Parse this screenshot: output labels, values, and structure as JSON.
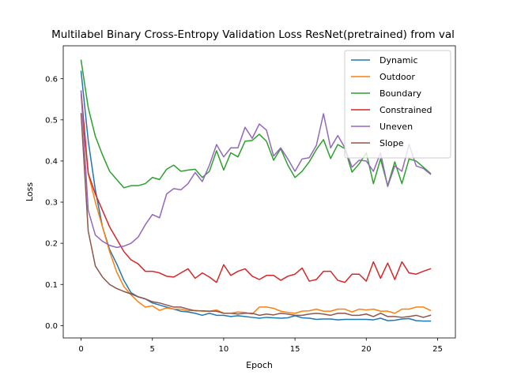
{
  "chart_data": {
    "type": "line",
    "title": "Multilabel Binary Cross-Entropy Validation Loss ResNet(pretrained) from val",
    "xlabel": "Epoch",
    "ylabel": "Loss",
    "xlim": [
      -1.25,
      26.25
    ],
    "ylim": [
      -0.03,
      0.68
    ],
    "xticks": [
      0,
      5,
      10,
      15,
      20,
      25
    ],
    "xtick_labels": [
      "0",
      "5",
      "10",
      "15",
      "20",
      "25"
    ],
    "yticks": [
      0.0,
      0.1,
      0.2,
      0.3,
      0.4,
      0.5,
      0.6
    ],
    "ytick_labels": [
      "0.0",
      "0.1",
      "0.2",
      "0.3",
      "0.4",
      "0.5",
      "0.6"
    ],
    "grid": false,
    "legend_position": "upper-right",
    "x": [
      0,
      0.5,
      1,
      1.5,
      2,
      2.5,
      3,
      3.5,
      4,
      4.5,
      5,
      5.5,
      6,
      6.5,
      7,
      7.5,
      8,
      8.5,
      9,
      9.5,
      10,
      10.5,
      11,
      11.5,
      12,
      12.5,
      13,
      13.5,
      14,
      14.5,
      15,
      15.5,
      16,
      16.5,
      17,
      17.5,
      18,
      18.5,
      19,
      19.5,
      20,
      20.5,
      21,
      21.5,
      22,
      22.5,
      23,
      23.5,
      24,
      24.5
    ],
    "series": [
      {
        "name": "Dynamic",
        "color": "#1f77b4",
        "values": [
          0.618,
          0.45,
          0.33,
          0.24,
          0.185,
          0.15,
          0.11,
          0.08,
          0.07,
          0.065,
          0.055,
          0.05,
          0.045,
          0.04,
          0.035,
          0.033,
          0.03,
          0.025,
          0.03,
          0.025,
          0.025,
          0.022,
          0.024,
          0.022,
          0.02,
          0.018,
          0.02,
          0.019,
          0.018,
          0.019,
          0.024,
          0.019,
          0.018,
          0.015,
          0.016,
          0.016,
          0.014,
          0.015,
          0.015,
          0.015,
          0.015,
          0.014,
          0.018,
          0.012,
          0.013,
          0.016,
          0.017,
          0.012,
          0.011,
          0.011
        ]
      },
      {
        "name": "Outdoor",
        "color": "#ff7f0e",
        "values": [
          0.56,
          0.37,
          0.3,
          0.24,
          0.18,
          0.13,
          0.095,
          0.075,
          0.058,
          0.045,
          0.048,
          0.037,
          0.043,
          0.04,
          0.04,
          0.036,
          0.037,
          0.035,
          0.035,
          0.038,
          0.03,
          0.03,
          0.033,
          0.032,
          0.028,
          0.045,
          0.045,
          0.042,
          0.035,
          0.032,
          0.03,
          0.035,
          0.036,
          0.04,
          0.035,
          0.035,
          0.04,
          0.04,
          0.033,
          0.04,
          0.038,
          0.04,
          0.035,
          0.035,
          0.03,
          0.04,
          0.04,
          0.045,
          0.045,
          0.037
        ]
      },
      {
        "name": "Boundary",
        "color": "#2ca02c",
        "values": [
          0.645,
          0.53,
          0.46,
          0.415,
          0.375,
          0.355,
          0.335,
          0.34,
          0.34,
          0.345,
          0.36,
          0.355,
          0.38,
          0.39,
          0.375,
          0.378,
          0.38,
          0.36,
          0.375,
          0.425,
          0.378,
          0.42,
          0.41,
          0.448,
          0.45,
          0.465,
          0.448,
          0.402,
          0.43,
          0.39,
          0.36,
          0.375,
          0.398,
          0.428,
          0.452,
          0.406,
          0.44,
          0.43,
          0.373,
          0.393,
          0.42,
          0.345,
          0.405,
          0.34,
          0.398,
          0.345,
          0.405,
          0.4,
          0.385,
          0.37
        ]
      },
      {
        "name": "Constrained",
        "color": "#d62728",
        "values": [
          0.57,
          0.37,
          0.32,
          0.28,
          0.24,
          0.21,
          0.18,
          0.16,
          0.15,
          0.132,
          0.132,
          0.128,
          0.12,
          0.118,
          0.128,
          0.138,
          0.115,
          0.128,
          0.118,
          0.105,
          0.148,
          0.122,
          0.132,
          0.138,
          0.12,
          0.112,
          0.122,
          0.122,
          0.11,
          0.12,
          0.125,
          0.14,
          0.108,
          0.112,
          0.132,
          0.132,
          0.11,
          0.105,
          0.125,
          0.125,
          0.108,
          0.155,
          0.115,
          0.152,
          0.112,
          0.155,
          0.128,
          0.125,
          0.132,
          0.138
        ]
      },
      {
        "name": "Uneven",
        "color": "#9467bd",
        "values": [
          0.57,
          0.28,
          0.22,
          0.205,
          0.195,
          0.19,
          0.193,
          0.2,
          0.215,
          0.245,
          0.27,
          0.262,
          0.32,
          0.333,
          0.33,
          0.345,
          0.372,
          0.35,
          0.39,
          0.44,
          0.41,
          0.432,
          0.432,
          0.482,
          0.455,
          0.49,
          0.475,
          0.412,
          0.432,
          0.405,
          0.375,
          0.405,
          0.408,
          0.438,
          0.515,
          0.432,
          0.462,
          0.432,
          0.385,
          0.402,
          0.4,
          0.375,
          0.42,
          0.338,
          0.388,
          0.375,
          0.44,
          0.388,
          0.382,
          0.368
        ]
      },
      {
        "name": "Slope",
        "color": "#8c564b",
        "values": [
          0.515,
          0.23,
          0.145,
          0.118,
          0.1,
          0.09,
          0.083,
          0.077,
          0.07,
          0.065,
          0.058,
          0.055,
          0.05,
          0.045,
          0.045,
          0.04,
          0.036,
          0.036,
          0.035,
          0.035,
          0.03,
          0.03,
          0.028,
          0.03,
          0.03,
          0.025,
          0.028,
          0.026,
          0.03,
          0.028,
          0.025,
          0.025,
          0.028,
          0.03,
          0.028,
          0.025,
          0.03,
          0.03,
          0.025,
          0.025,
          0.028,
          0.022,
          0.03,
          0.022,
          0.022,
          0.02,
          0.022,
          0.025,
          0.02,
          0.025
        ]
      }
    ]
  }
}
